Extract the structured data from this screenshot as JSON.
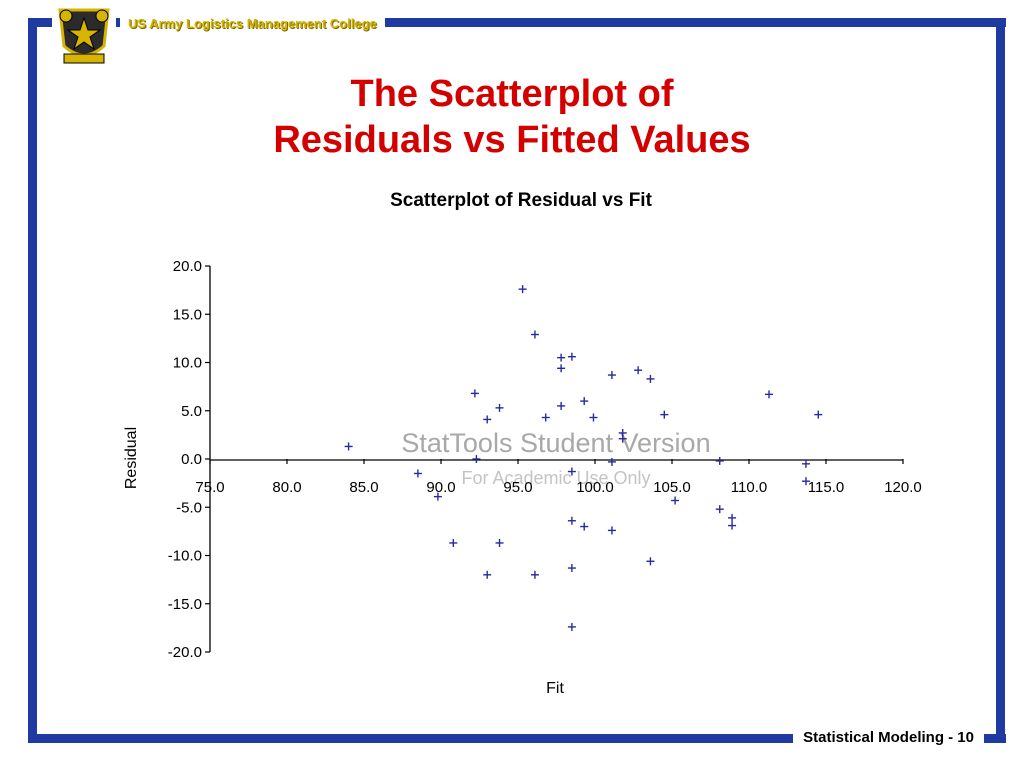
{
  "header": {
    "college_name": "US Army Logistics Management College"
  },
  "slide": {
    "title_line1": "The Scatterplot of",
    "title_line2": "Residuals vs Fitted Values"
  },
  "footer": {
    "label": "Statistical Modeling - 10"
  },
  "colors": {
    "frame": "#1f3aa0",
    "title": "#d40000",
    "college_text": "#d6b400",
    "marker": "#2a2aa0"
  },
  "chart_data": {
    "type": "scatter",
    "title": "Scatterplot of Residual vs Fit",
    "xlabel": "Fit",
    "ylabel": "Residual",
    "xlim": [
      75,
      120
    ],
    "ylim": [
      -20,
      20
    ],
    "x_ticks": [
      "75.0",
      "80.0",
      "85.0",
      "90.0",
      "95.0",
      "100.0",
      "105.0",
      "110.0",
      "115.0",
      "120.0"
    ],
    "y_ticks": [
      "20.0",
      "15.0",
      "10.0",
      "5.0",
      "0.0",
      "-5.0",
      "-10.0",
      "-15.0",
      "-20.0"
    ],
    "watermark": [
      "StatTools Student Version",
      "For Academic Use Only"
    ],
    "marker": "+",
    "points": [
      {
        "x": 84.0,
        "y": 1.3
      },
      {
        "x": 88.5,
        "y": -1.5
      },
      {
        "x": 89.8,
        "y": -3.9
      },
      {
        "x": 90.8,
        "y": -8.7
      },
      {
        "x": 92.2,
        "y": 6.8
      },
      {
        "x": 92.3,
        "y": 0.0
      },
      {
        "x": 93.0,
        "y": 4.1
      },
      {
        "x": 93.0,
        "y": -12.0
      },
      {
        "x": 93.8,
        "y": 5.3
      },
      {
        "x": 93.8,
        "y": -8.7
      },
      {
        "x": 95.3,
        "y": 17.6
      },
      {
        "x": 96.1,
        "y": 12.9
      },
      {
        "x": 96.1,
        "y": -12.0
      },
      {
        "x": 96.8,
        "y": 4.3
      },
      {
        "x": 97.8,
        "y": 10.5
      },
      {
        "x": 97.8,
        "y": 9.4
      },
      {
        "x": 97.8,
        "y": 5.5
      },
      {
        "x": 98.5,
        "y": 10.6
      },
      {
        "x": 98.5,
        "y": -1.3
      },
      {
        "x": 98.5,
        "y": -6.4
      },
      {
        "x": 98.5,
        "y": -11.3
      },
      {
        "x": 98.5,
        "y": -17.4
      },
      {
        "x": 99.3,
        "y": 6.0
      },
      {
        "x": 99.3,
        "y": -7.0
      },
      {
        "x": 99.9,
        "y": 4.3
      },
      {
        "x": 101.1,
        "y": 8.7
      },
      {
        "x": 101.1,
        "y": -0.3
      },
      {
        "x": 101.1,
        "y": -7.4
      },
      {
        "x": 101.8,
        "y": 2.7
      },
      {
        "x": 101.8,
        "y": 2.1
      },
      {
        "x": 102.8,
        "y": 9.2
      },
      {
        "x": 103.6,
        "y": 8.3
      },
      {
        "x": 103.6,
        "y": -10.6
      },
      {
        "x": 104.5,
        "y": 4.6
      },
      {
        "x": 105.2,
        "y": -4.3
      },
      {
        "x": 108.1,
        "y": -0.2
      },
      {
        "x": 108.1,
        "y": -5.2
      },
      {
        "x": 108.9,
        "y": -6.1
      },
      {
        "x": 108.9,
        "y": -6.9
      },
      {
        "x": 111.3,
        "y": 6.7
      },
      {
        "x": 113.7,
        "y": -0.5
      },
      {
        "x": 113.7,
        "y": -2.3
      },
      {
        "x": 114.5,
        "y": 4.6
      }
    ]
  }
}
